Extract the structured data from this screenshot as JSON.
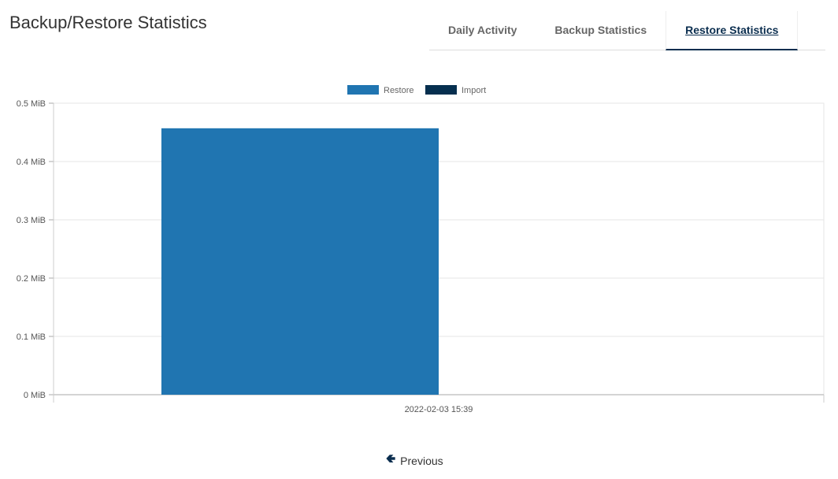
{
  "header": {
    "title": "Backup/Restore Statistics"
  },
  "tabs": [
    {
      "label": "Daily Activity",
      "active": false
    },
    {
      "label": "Backup Statistics",
      "active": false
    },
    {
      "label": "Restore Statistics",
      "active": true
    }
  ],
  "pagination": {
    "previous_label": "Previous",
    "previous_icon": "arrow-left-icon"
  },
  "chart_data": {
    "type": "bar",
    "categories": [
      "2022-02-03 15:39"
    ],
    "series": [
      {
        "name": "Restore",
        "values": [
          0.457
        ],
        "color": "#2075b1"
      },
      {
        "name": "Import",
        "values": [
          0
        ],
        "color": "#062f4f"
      }
    ],
    "yticks": [
      "0 MiB",
      "0.1 MiB",
      "0.2 MiB",
      "0.3 MiB",
      "0.4 MiB",
      "0.5 MiB"
    ],
    "ylim": [
      0,
      0.5
    ],
    "yunit": "MiB",
    "grid": true,
    "legend": "top-center"
  }
}
